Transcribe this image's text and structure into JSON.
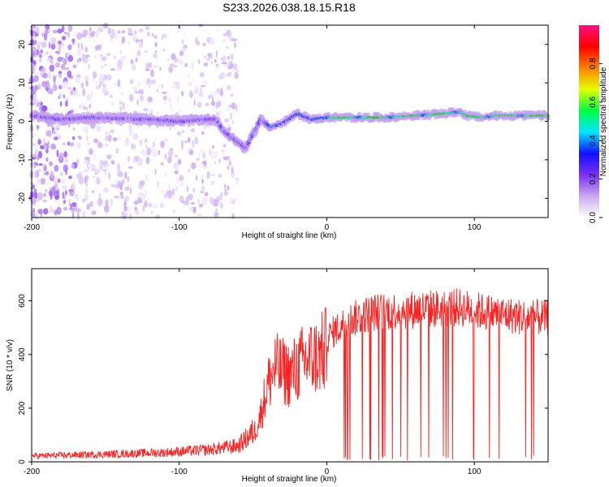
{
  "title": "S233.2026.038.18.15.R18",
  "chart_data": [
    {
      "type": "heatmap",
      "xlabel": "Height of straight line (km)",
      "ylabel": "Frequency (Hz)",
      "xlim": [
        -200,
        150
      ],
      "ylim": [
        -25,
        25
      ],
      "x_ticks": [
        -200,
        -100,
        0,
        100
      ],
      "y_ticks": [
        -20,
        -10,
        0,
        10,
        20
      ],
      "colorbar": {
        "label": "Normalized spectral amplitude",
        "range": [
          0,
          1
        ],
        "ticks": [
          0.0,
          0.2,
          0.4,
          0.6,
          0.8
        ],
        "tick_labels": [
          "0.0",
          "0.2",
          "0.4",
          "0.6",
          "0.8"
        ],
        "colors": [
          "#ffffff",
          "#c9a9f0",
          "#7b2ff7",
          "#1010ff",
          "#00e6ff",
          "#00ff40",
          "#e6ff00",
          "#ff8000",
          "#ff0000",
          "#ff1080"
        ]
      },
      "ridge": [
        {
          "x": -200,
          "y": 1.5
        },
        {
          "x": -180,
          "y": 0.5
        },
        {
          "x": -160,
          "y": 1.0
        },
        {
          "x": -140,
          "y": 0.8
        },
        {
          "x": -120,
          "y": 0.5
        },
        {
          "x": -100,
          "y": 0.0
        },
        {
          "x": -85,
          "y": 0.5
        },
        {
          "x": -75,
          "y": 0.5
        },
        {
          "x": -70,
          "y": -2.5
        },
        {
          "x": -60,
          "y": -5.5
        },
        {
          "x": -55,
          "y": -7.0
        },
        {
          "x": -50,
          "y": -3.5
        },
        {
          "x": -45,
          "y": 0.5
        },
        {
          "x": -38,
          "y": -1.5
        },
        {
          "x": -30,
          "y": -0.5
        },
        {
          "x": -20,
          "y": 2.0
        },
        {
          "x": -10,
          "y": 0.5
        },
        {
          "x": 0,
          "y": 1.0
        },
        {
          "x": 10,
          "y": 1.0
        },
        {
          "x": 40,
          "y": 1.0
        },
        {
          "x": 60,
          "y": 1.5
        },
        {
          "x": 80,
          "y": 2.0
        },
        {
          "x": 90,
          "y": 2.5
        },
        {
          "x": 95,
          "y": 1.5
        },
        {
          "x": 105,
          "y": 1.0
        },
        {
          "x": 115,
          "y": 1.5
        },
        {
          "x": 150,
          "y": 1.5
        }
      ]
    },
    {
      "type": "line",
      "xlabel": "Height of straight line (km)",
      "ylabel": "SNR (10 * v/v)",
      "xlim": [
        -200,
        150
      ],
      "ylim": [
        0,
        720
      ],
      "x_ticks": [
        -200,
        -100,
        0,
        100
      ],
      "y_ticks": [
        0,
        200,
        400,
        600
      ],
      "color": "#ff2020",
      "envelope": [
        {
          "x": -200,
          "snr": 22
        },
        {
          "x": -150,
          "snr": 28
        },
        {
          "x": -110,
          "snr": 35
        },
        {
          "x": -80,
          "snr": 45
        },
        {
          "x": -60,
          "snr": 60
        },
        {
          "x": -50,
          "snr": 110
        },
        {
          "x": -45,
          "snr": 190
        },
        {
          "x": -40,
          "snr": 320
        },
        {
          "x": -35,
          "snr": 390
        },
        {
          "x": -25,
          "snr": 360
        },
        {
          "x": -15,
          "snr": 420
        },
        {
          "x": -5,
          "snr": 440
        },
        {
          "x": 5,
          "snr": 500
        },
        {
          "x": 15,
          "snr": 540
        },
        {
          "x": 30,
          "snr": 570
        },
        {
          "x": 50,
          "snr": 580
        },
        {
          "x": 70,
          "snr": 585
        },
        {
          "x": 90,
          "snr": 590
        },
        {
          "x": 110,
          "snr": 570
        },
        {
          "x": 130,
          "snr": 555
        },
        {
          "x": 150,
          "snr": 550
        }
      ]
    }
  ]
}
